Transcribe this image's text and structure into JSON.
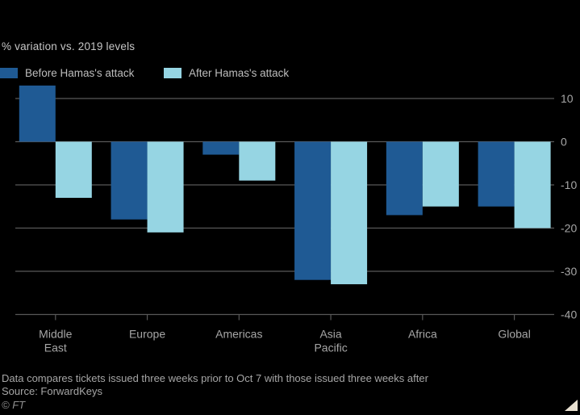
{
  "chart_data": {
    "type": "bar",
    "subtitle": "% variation vs. 2019 levels",
    "categories": [
      "Middle East",
      "Europe",
      "Americas",
      "Asia Pacific",
      "Africa",
      "Global"
    ],
    "series": [
      {
        "name": "Before Hamas's attack",
        "color": "#1f5a94",
        "values": [
          13,
          -18,
          -3,
          -32,
          -17,
          -15
        ]
      },
      {
        "name": "After Hamas's attack",
        "color": "#96d5e3",
        "values": [
          -13,
          -21,
          -9,
          -33,
          -15,
          -20
        ]
      }
    ],
    "yticks": [
      10,
      0,
      -10,
      -20,
      -30,
      -40
    ],
    "ylim": [
      -40,
      15
    ],
    "grid": true,
    "legend_position": "top-left",
    "colors": {
      "background": "#000000",
      "gridline": "#585858",
      "axis_text": "#a6a6a6"
    }
  },
  "footer": {
    "note": "Data compares tickets issued three weeks prior to Oct 7 with those issued three weeks after",
    "source": "Source: ForwardKeys",
    "credit": "© FT"
  }
}
